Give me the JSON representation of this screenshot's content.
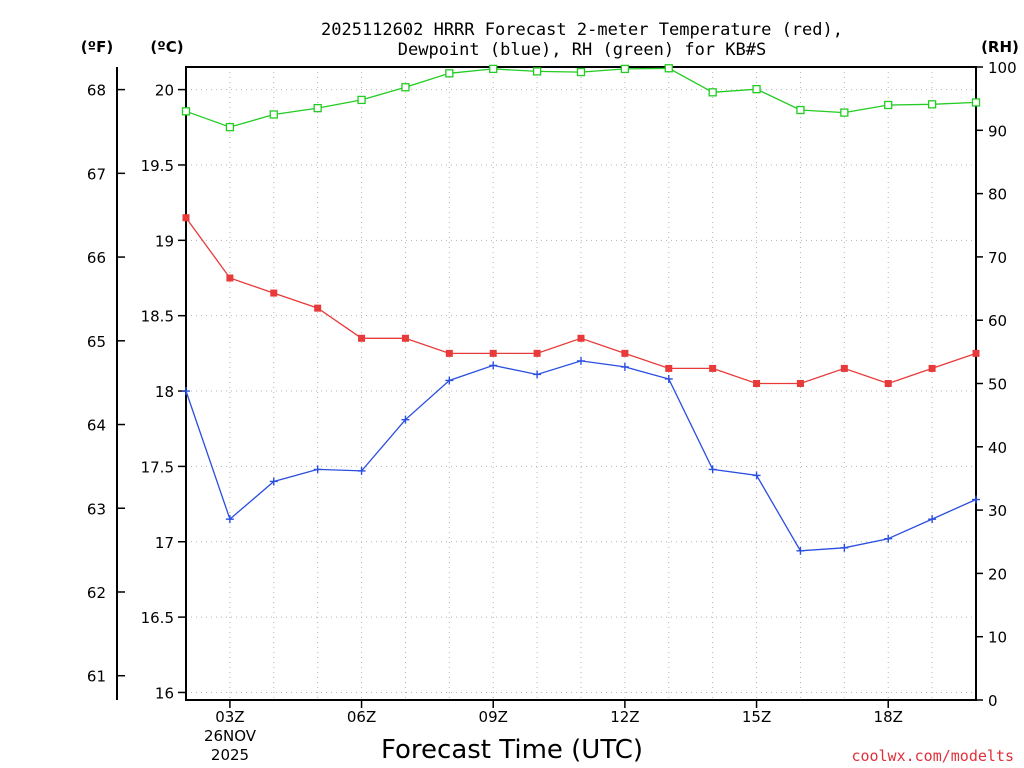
{
  "chart_data": {
    "type": "line",
    "title_line1": "2025112602 HRRR Forecast 2-meter Temperature (red),",
    "title_line2": "Dewpoint (blue), RH (green) for KB#S",
    "xlabel": "Forecast Time (UTC)",
    "credit": "coolwx.com/modelts",
    "left_unit_f": "(ºF)",
    "left_unit_c": "(ºC)",
    "right_unit": "(RH)",
    "hours": [
      2,
      3,
      4,
      5,
      6,
      7,
      8,
      9,
      10,
      11,
      12,
      13,
      14,
      15,
      16,
      17,
      18,
      19,
      20
    ],
    "xlim": [
      2,
      20
    ],
    "x_ticks": [
      {
        "hour": 3,
        "label": "03Z"
      },
      {
        "hour": 6,
        "label": "06Z"
      },
      {
        "hour": 9,
        "label": "09Z"
      },
      {
        "hour": 12,
        "label": "12Z"
      },
      {
        "hour": 15,
        "label": "15Z"
      },
      {
        "hour": 18,
        "label": "18Z"
      }
    ],
    "date_label_1": "26NOV",
    "date_label_2": "2025",
    "celsius_axis": {
      "ylim": [
        15.95,
        20.15
      ],
      "ticks": [
        "16",
        "16.5",
        "17",
        "17.5",
        "18",
        "18.5",
        "19",
        "19.5",
        "20"
      ]
    },
    "fahrenheit_axis": {
      "ticks": [
        "61",
        "62",
        "63",
        "64",
        "65",
        "66",
        "67",
        "68"
      ]
    },
    "rh_axis": {
      "ylim": [
        0,
        100
      ],
      "ticks": [
        "0",
        "10",
        "20",
        "30",
        "40",
        "50",
        "60",
        "70",
        "80",
        "90",
        "100"
      ]
    },
    "series": [
      {
        "name": "Temperature",
        "axis": "celsius",
        "color": "#e83a3a",
        "marker": "filled-square",
        "values": [
          19.15,
          18.75,
          18.65,
          18.55,
          18.35,
          18.35,
          18.25,
          18.25,
          18.25,
          18.35,
          18.25,
          18.15,
          18.15,
          18.05,
          18.05,
          18.15,
          18.05,
          18.15,
          18.25
        ]
      },
      {
        "name": "Dewpoint",
        "axis": "celsius",
        "color": "#2a4ee0",
        "marker": "plus",
        "values": [
          18.0,
          17.15,
          17.4,
          17.48,
          17.47,
          17.81,
          18.07,
          18.17,
          18.11,
          18.2,
          18.16,
          18.08,
          17.48,
          17.44,
          16.94,
          16.96,
          17.02,
          17.15,
          17.28
        ]
      },
      {
        "name": "RH",
        "axis": "rh",
        "color": "#22cc22",
        "marker": "open-square",
        "values": [
          93,
          90.5,
          92.5,
          93.5,
          94.8,
          96.8,
          99,
          99.7,
          99.3,
          99.2,
          99.7,
          99.8,
          96,
          96.5,
          93.2,
          92.8,
          94,
          94.1,
          94.4
        ]
      }
    ]
  }
}
